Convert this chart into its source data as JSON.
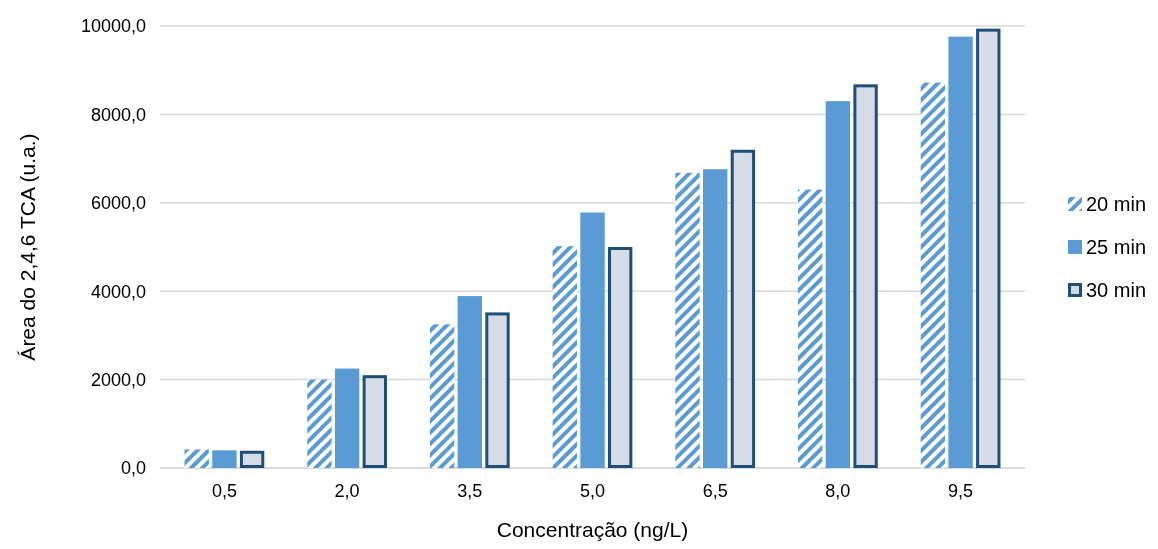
{
  "chart_data": {
    "type": "bar",
    "xlabel": "Concentração (ng/L)",
    "ylabel": "Área do 2,4,6 TCA (u.a.)",
    "categories": [
      "0,5",
      "2,0",
      "3,5",
      "5,0",
      "6,5",
      "8,0",
      "9,5"
    ],
    "series": [
      {
        "name": "20 min",
        "color": "#5b9bd5",
        "values": [
          420,
          2000,
          3250,
          5020,
          6680,
          6300,
          8720
        ]
      },
      {
        "name": "25 min",
        "color": "#5b9bd5",
        "values": [
          400,
          2250,
          3890,
          5780,
          6760,
          8300,
          9760
        ]
      },
      {
        "name": "30 min",
        "color": "#d6dce5",
        "values": [
          390,
          2100,
          3520,
          5000,
          7200,
          8680,
          9940
        ]
      }
    ],
    "ylim": [
      0,
      10000
    ],
    "yticks": [
      {
        "value": 0,
        "label": "0,0"
      },
      {
        "value": 2000,
        "label": "2000,0"
      },
      {
        "value": 4000,
        "label": "4000,0"
      },
      {
        "value": 6000,
        "label": "6000,0"
      },
      {
        "value": 8000,
        "label": "8000,0"
      },
      {
        "value": 10000,
        "label": "10000,0"
      }
    ],
    "grid": "y",
    "legend": "right"
  }
}
